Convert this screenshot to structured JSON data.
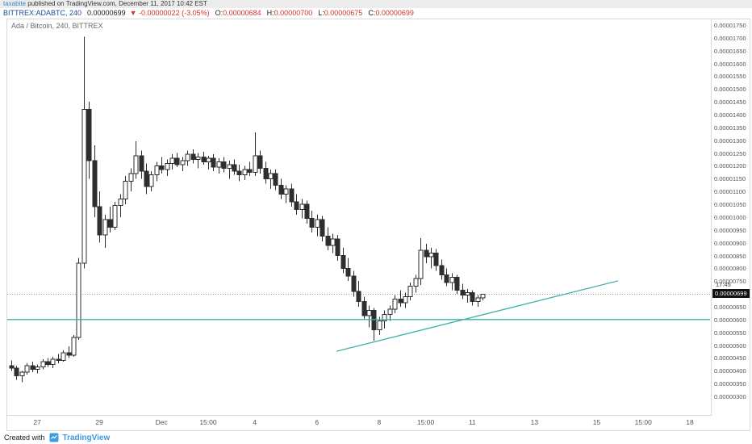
{
  "publish_bar": {
    "publisher": "taxabite",
    "text": " published on TradingView.com, December 11, 2017 10:42 EST"
  },
  "symbol_bar": {
    "symbol": "BITTREX:ADABTC, 240",
    "price": "0.00000699",
    "direction_arrow": "▼",
    "change": "-0.00000022 (-3.05%)",
    "ohlc": [
      {
        "label": "O",
        "value": "0.00000684"
      },
      {
        "label": "H",
        "value": "0.00000700"
      },
      {
        "label": "L",
        "value": "0.00000675"
      },
      {
        "label": "C",
        "value": "0.00000699"
      }
    ]
  },
  "chart": {
    "legend": "Ada / Bitcoin, 240, BITTREX",
    "countdown": "17:45",
    "price_label": "0.00000699"
  },
  "chart_data": {
    "type": "candlestick",
    "symbol": "BITTREX:ADABTC",
    "interval": "240",
    "price_unit": 1e-08,
    "last_price": 699,
    "y_axis": {
      "min": 300,
      "max": 1750,
      "tick_step": 50,
      "labels": [
        "0.00001750",
        "0.00001700",
        "0.00001650",
        "0.00001600",
        "0.00001550",
        "0.00001500",
        "0.00001450",
        "0.00001400",
        "0.00001350",
        "0.00001300",
        "0.00001250",
        "0.00001200",
        "0.00001150",
        "0.00001100",
        "0.00001050",
        "0.00001000",
        "0.00000950",
        "0.00000900",
        "0.00000850",
        "0.00000800",
        "0.00000750",
        "0.00000700",
        "0.00000650",
        "0.00000600",
        "0.00000550",
        "0.00000500",
        "0.00000450",
        "0.00000400",
        "0.00000350",
        "0.00000300"
      ]
    },
    "x_axis": {
      "labels": [
        {
          "text": "27",
          "index": 5
        },
        {
          "text": "29",
          "index": 17
        },
        {
          "text": "Dec",
          "index": 29
        },
        {
          "text": "15:00",
          "index": 38
        },
        {
          "text": "4",
          "index": 47
        },
        {
          "text": "6",
          "index": 59
        },
        {
          "text": "8",
          "index": 71
        },
        {
          "text": "15:00",
          "index": 80
        },
        {
          "text": "11",
          "index": 89
        },
        {
          "text": "13",
          "index": 101
        },
        {
          "text": "15",
          "index": 113
        },
        {
          "text": "15:00",
          "index": 122
        },
        {
          "text": "18",
          "index": 131
        }
      ]
    },
    "candles": [
      [
        420,
        440,
        400,
        410
      ],
      [
        410,
        420,
        365,
        380
      ],
      [
        380,
        400,
        355,
        395
      ],
      [
        395,
        430,
        385,
        420
      ],
      [
        420,
        435,
        395,
        405
      ],
      [
        405,
        425,
        390,
        415
      ],
      [
        415,
        445,
        405,
        435
      ],
      [
        435,
        450,
        415,
        425
      ],
      [
        425,
        455,
        410,
        445
      ],
      [
        445,
        465,
        430,
        440
      ],
      [
        440,
        480,
        435,
        470
      ],
      [
        470,
        495,
        450,
        460
      ],
      [
        460,
        540,
        455,
        530
      ],
      [
        530,
        840,
        520,
        820
      ],
      [
        820,
        1705,
        800,
        1420
      ],
      [
        1420,
        1450,
        1150,
        1220
      ],
      [
        1220,
        1280,
        1000,
        1040
      ],
      [
        1040,
        1100,
        900,
        930
      ],
      [
        930,
        1010,
        880,
        990
      ],
      [
        990,
        1040,
        940,
        960
      ],
      [
        960,
        1060,
        950,
        1045
      ],
      [
        1045,
        1090,
        1000,
        1070
      ],
      [
        1070,
        1160,
        1050,
        1140
      ],
      [
        1140,
        1190,
        1100,
        1170
      ],
      [
        1170,
        1296,
        1150,
        1240
      ],
      [
        1240,
        1260,
        1150,
        1180
      ],
      [
        1180,
        1210,
        1090,
        1120
      ],
      [
        1120,
        1180,
        1100,
        1165
      ],
      [
        1165,
        1215,
        1140,
        1200
      ],
      [
        1200,
        1235,
        1170,
        1185
      ],
      [
        1185,
        1225,
        1160,
        1210
      ],
      [
        1210,
        1245,
        1185,
        1230
      ],
      [
        1230,
        1250,
        1195,
        1205
      ],
      [
        1205,
        1235,
        1180,
        1220
      ],
      [
        1220,
        1260,
        1200,
        1245
      ],
      [
        1245,
        1265,
        1210,
        1225
      ],
      [
        1225,
        1250,
        1190,
        1235
      ],
      [
        1235,
        1255,
        1205,
        1215
      ],
      [
        1215,
        1240,
        1185,
        1230
      ],
      [
        1230,
        1245,
        1180,
        1195
      ],
      [
        1195,
        1230,
        1170,
        1215
      ],
      [
        1215,
        1235,
        1175,
        1190
      ],
      [
        1190,
        1220,
        1150,
        1205
      ],
      [
        1205,
        1225,
        1165,
        1180
      ],
      [
        1180,
        1205,
        1140,
        1165
      ],
      [
        1165,
        1200,
        1145,
        1185
      ],
      [
        1185,
        1215,
        1160,
        1175
      ],
      [
        1175,
        1330,
        1160,
        1240
      ],
      [
        1240,
        1260,
        1170,
        1190
      ],
      [
        1190,
        1215,
        1130,
        1150
      ],
      [
        1150,
        1185,
        1110,
        1170
      ],
      [
        1170,
        1185,
        1105,
        1125
      ],
      [
        1125,
        1150,
        1070,
        1090
      ],
      [
        1090,
        1125,
        1055,
        1110
      ],
      [
        1110,
        1130,
        1040,
        1060
      ],
      [
        1060,
        1090,
        1010,
        1030
      ],
      [
        1030,
        1070,
        995,
        1050
      ],
      [
        1050,
        1065,
        975,
        995
      ],
      [
        995,
        1025,
        940,
        960
      ],
      [
        960,
        1010,
        925,
        990
      ],
      [
        990,
        1005,
        905,
        925
      ],
      [
        925,
        960,
        870,
        890
      ],
      [
        890,
        935,
        860,
        915
      ],
      [
        915,
        930,
        830,
        850
      ],
      [
        850,
        880,
        780,
        800
      ],
      [
        800,
        840,
        750,
        770
      ],
      [
        770,
        790,
        690,
        710
      ],
      [
        710,
        750,
        650,
        670
      ],
      [
        670,
        690,
        600,
        615
      ],
      [
        615,
        655,
        570,
        635
      ],
      [
        635,
        645,
        518,
        560
      ],
      [
        560,
        610,
        540,
        595
      ],
      [
        595,
        635,
        565,
        620
      ],
      [
        620,
        655,
        595,
        640
      ],
      [
        640,
        695,
        625,
        680
      ],
      [
        680,
        715,
        650,
        665
      ],
      [
        665,
        705,
        645,
        690
      ],
      [
        690,
        745,
        675,
        730
      ],
      [
        730,
        775,
        705,
        760
      ],
      [
        760,
        918,
        735,
        870
      ],
      [
        870,
        895,
        820,
        845
      ],
      [
        845,
        880,
        800,
        860
      ],
      [
        860,
        875,
        790,
        810
      ],
      [
        810,
        835,
        755,
        775
      ],
      [
        775,
        800,
        730,
        745
      ],
      [
        745,
        780,
        715,
        765
      ],
      [
        765,
        775,
        700,
        715
      ],
      [
        715,
        740,
        680,
        695
      ],
      [
        695,
        720,
        665,
        705
      ],
      [
        705,
        715,
        655,
        670
      ],
      [
        670,
        695,
        650,
        685
      ],
      [
        684,
        700,
        675,
        699
      ]
    ],
    "drawings": [
      {
        "type": "horizontal_line",
        "price": 600,
        "color": "#3cb3a3"
      },
      {
        "type": "trend_line",
        "from": {
          "index": 62.8,
          "price": 476
        },
        "to": {
          "index": 117.1,
          "price": 751
        },
        "color": "#3cb3a3"
      }
    ]
  },
  "footer": {
    "created_with": "Created with",
    "brand": "TradingView"
  },
  "colors": {
    "link_blue": "#3a87c8",
    "symbol_navy": "#1c4c96",
    "negative_red": "#d0342c",
    "candle": "#2e2e2e",
    "drawing_teal": "#3cb3a3",
    "price_tag_bg": "#111111",
    "axis_text": "#555555",
    "brand_blue": "#3d9be0"
  }
}
